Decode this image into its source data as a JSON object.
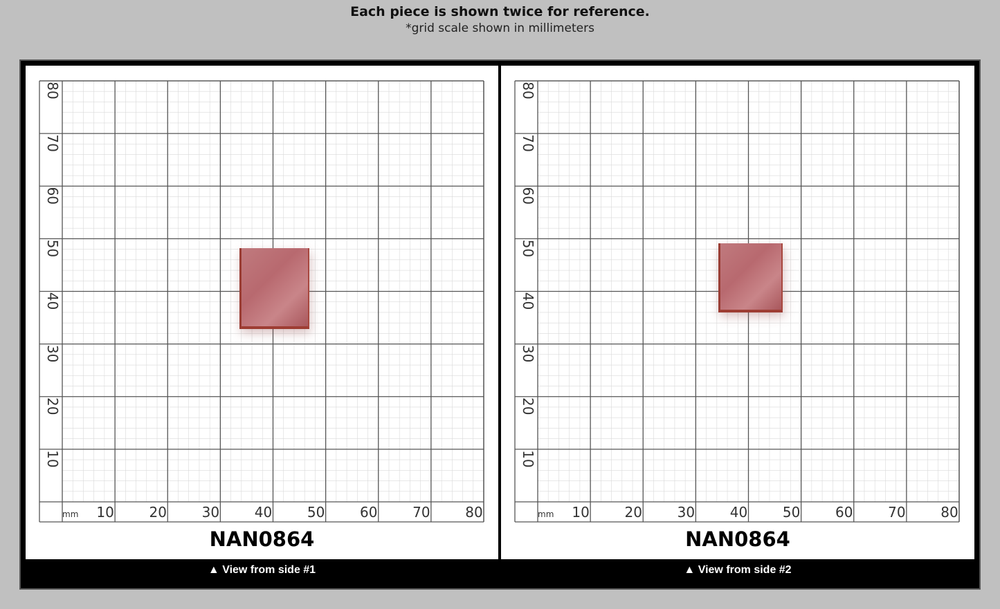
{
  "header": {
    "title": "Each piece is shown twice for reference.",
    "subtitle": "*grid scale shown in millimeters"
  },
  "grid": {
    "unit": "mm",
    "x_labels": [
      "10",
      "20",
      "30",
      "40",
      "50",
      "60",
      "70",
      "80"
    ],
    "y_labels": [
      "80",
      "70",
      "60",
      "50",
      "40",
      "30",
      "20",
      "10"
    ]
  },
  "panels": [
    {
      "code": "NAN0864",
      "caption": "▲ View from side #1"
    },
    {
      "code": "NAN0864",
      "caption": "▲ View from side #2"
    }
  ],
  "colors": {
    "background": "#c0c0c0",
    "frame": "#000000",
    "grid_major": "#555555",
    "grid_minor": "#d9d9d9",
    "piece": "#b8696f"
  }
}
